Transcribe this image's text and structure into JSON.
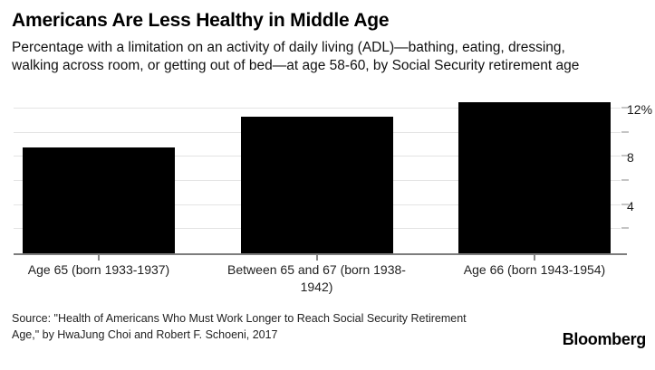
{
  "header": {
    "title": "Americans Are Less Healthy in Middle Age",
    "subtitle_line1": "Percentage with a limitation on an activity of daily living (ADL)—bathing, eating, dressing,",
    "subtitle_line2": "walking across room, or getting out of bed—at age 58-60, by Social Security retirement age"
  },
  "chart_data": {
    "type": "bar",
    "title": "Americans Are Less Healthy in Middle Age",
    "ylabel": "",
    "xlabel": "",
    "categories": [
      "Age 65 (born 1933-1937)",
      "Between 65 and 67 (born 1938-1942)",
      "Age 66 (born 1943-1954)"
    ],
    "values": [
      8.8,
      11.3,
      12.5
    ],
    "unit": "%",
    "ylim": [
      0,
      13.5
    ],
    "gridline_values": [
      2,
      4,
      6,
      8,
      10,
      12
    ],
    "y_tick_labels": [
      {
        "value": 12,
        "label": "12%"
      },
      {
        "value": 8,
        "label": "8"
      },
      {
        "value": 4,
        "label": "4"
      }
    ],
    "grid": true,
    "axis_side": "right",
    "bar_color": "#000000"
  },
  "footer": {
    "source_lines": [
      "Source: \"Health of Americans Who Must Work Longer to Reach Social Security Retirement",
      "Age,\" by HwaJung Choi and Robert F. Schoeni, 2017"
    ],
    "brand": "Bloomberg"
  },
  "colors": {
    "bar": "#000000",
    "gridline": "#e4e4e4",
    "baseline": "#7d7d7d",
    "axis_tick": "#c4c4c4"
  }
}
